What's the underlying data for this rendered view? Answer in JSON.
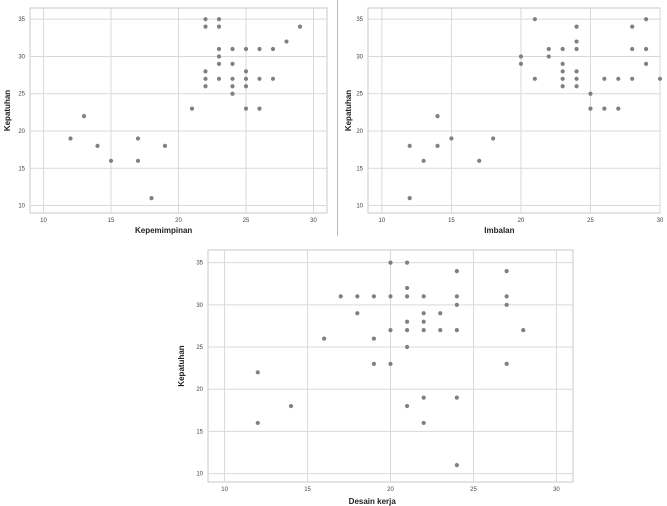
{
  "chart_data": [
    {
      "type": "scatter",
      "xlabel": "Kepemimpinan",
      "ylabel": "Kepatuhan",
      "xlim": [
        9,
        31
      ],
      "ylim": [
        9,
        36.5
      ],
      "xticks": [
        10,
        15,
        20,
        25,
        30
      ],
      "yticks": [
        10,
        15,
        20,
        25,
        30,
        35
      ],
      "grid": true,
      "points": [
        [
          12,
          19
        ],
        [
          13,
          22
        ],
        [
          14,
          18
        ],
        [
          15,
          16
        ],
        [
          17,
          19
        ],
        [
          17,
          16
        ],
        [
          18,
          11
        ],
        [
          19,
          18
        ],
        [
          21,
          23
        ],
        [
          22,
          35
        ],
        [
          22,
          34
        ],
        [
          22,
          28
        ],
        [
          22,
          27
        ],
        [
          22,
          26
        ],
        [
          23,
          35
        ],
        [
          23,
          34
        ],
        [
          23,
          31
        ],
        [
          23,
          30
        ],
        [
          23,
          29
        ],
        [
          23,
          27
        ],
        [
          24,
          31
        ],
        [
          24,
          29
        ],
        [
          24,
          27
        ],
        [
          24,
          26
        ],
        [
          24,
          25
        ],
        [
          25,
          31
        ],
        [
          25,
          28
        ],
        [
          25,
          27
        ],
        [
          25,
          26
        ],
        [
          25,
          23
        ],
        [
          26,
          31
        ],
        [
          26,
          27
        ],
        [
          26,
          23
        ],
        [
          27,
          31
        ],
        [
          27,
          27
        ],
        [
          28,
          32
        ],
        [
          29,
          34
        ]
      ]
    },
    {
      "type": "scatter",
      "xlabel": "Imbalan",
      "ylabel": "Kepatuhan",
      "xlim": [
        9,
        30
      ],
      "ylim": [
        9,
        36.5
      ],
      "xticks": [
        10,
        15,
        20,
        25,
        30
      ],
      "yticks": [
        10,
        15,
        20,
        25,
        30,
        35
      ],
      "grid": true,
      "points": [
        [
          12,
          18
        ],
        [
          12,
          11
        ],
        [
          13,
          16
        ],
        [
          14,
          22
        ],
        [
          14,
          18
        ],
        [
          15,
          19
        ],
        [
          17,
          16
        ],
        [
          18,
          19
        ],
        [
          20,
          30
        ],
        [
          20,
          29
        ],
        [
          21,
          35
        ],
        [
          21,
          27
        ],
        [
          22,
          31
        ],
        [
          22,
          30
        ],
        [
          23,
          31
        ],
        [
          23,
          29
        ],
        [
          23,
          28
        ],
        [
          23,
          27
        ],
        [
          23,
          26
        ],
        [
          24,
          34
        ],
        [
          24,
          32
        ],
        [
          24,
          31
        ],
        [
          24,
          28
        ],
        [
          24,
          27
        ],
        [
          24,
          26
        ],
        [
          25,
          25
        ],
        [
          25,
          23
        ],
        [
          26,
          27
        ],
        [
          26,
          23
        ],
        [
          27,
          27
        ],
        [
          27,
          23
        ],
        [
          28,
          34
        ],
        [
          28,
          31
        ],
        [
          28,
          27
        ],
        [
          29,
          35
        ],
        [
          29,
          31
        ],
        [
          29,
          29
        ],
        [
          30,
          27
        ]
      ]
    },
    {
      "type": "scatter",
      "xlabel": "Desain  kerja",
      "ylabel": "Kepatuhan",
      "xlim": [
        9,
        31
      ],
      "ylim": [
        9,
        36.5
      ],
      "xticks": [
        10,
        15,
        20,
        25,
        30
      ],
      "yticks": [
        10,
        15,
        20,
        25,
        30,
        35
      ],
      "grid": true,
      "points": [
        [
          12,
          22
        ],
        [
          12,
          16
        ],
        [
          14,
          18
        ],
        [
          16,
          26
        ],
        [
          17,
          31
        ],
        [
          18,
          31
        ],
        [
          18,
          29
        ],
        [
          19,
          31
        ],
        [
          19,
          26
        ],
        [
          19,
          23
        ],
        [
          20,
          35
        ],
        [
          20,
          31
        ],
        [
          20,
          27
        ],
        [
          20,
          23
        ],
        [
          21,
          35
        ],
        [
          21,
          32
        ],
        [
          21,
          31
        ],
        [
          21,
          28
        ],
        [
          21,
          27
        ],
        [
          21,
          25
        ],
        [
          21,
          18
        ],
        [
          22,
          31
        ],
        [
          22,
          29
        ],
        [
          22,
          28
        ],
        [
          22,
          27
        ],
        [
          22,
          19
        ],
        [
          22,
          16
        ],
        [
          23,
          29
        ],
        [
          23,
          27
        ],
        [
          24,
          34
        ],
        [
          24,
          31
        ],
        [
          24,
          30
        ],
        [
          24,
          27
        ],
        [
          24,
          19
        ],
        [
          24,
          11
        ],
        [
          27,
          34
        ],
        [
          27,
          31
        ],
        [
          27,
          30
        ],
        [
          27,
          23
        ],
        [
          28,
          27
        ]
      ]
    }
  ]
}
